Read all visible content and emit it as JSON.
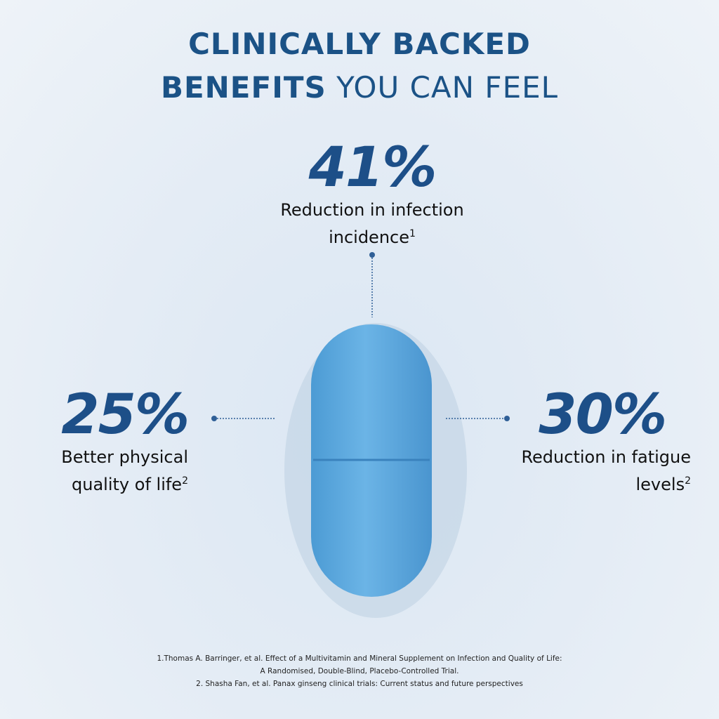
{
  "title": {
    "line1": "CLINICALLY BACKED",
    "line2_bold": "BENEFITS",
    "line2_regular": "YOU CAN FEEL"
  },
  "stats": [
    {
      "value": "41%",
      "label_lines": [
        "Reduction in infection",
        "incidence"
      ],
      "footnote_ref": "1"
    },
    {
      "value": "25%",
      "label_lines": [
        "Better physical",
        "quality of life"
      ],
      "footnote_ref": "2"
    },
    {
      "value": "30%",
      "label_lines": [
        "Reduction in fatigue",
        "levels"
      ],
      "footnote_ref": "2"
    }
  ],
  "footnotes": [
    "1.Thomas A. Barringer, et al. Effect of a Multivitamin and Mineral Supplement on Infection and Quality of Life:",
    "A Randomised, Double-Blind, Placebo-Controlled Trial.",
    "2. Shasha Fan, et al. Panax ginseng clinical trials: Current status and future perspectives"
  ]
}
